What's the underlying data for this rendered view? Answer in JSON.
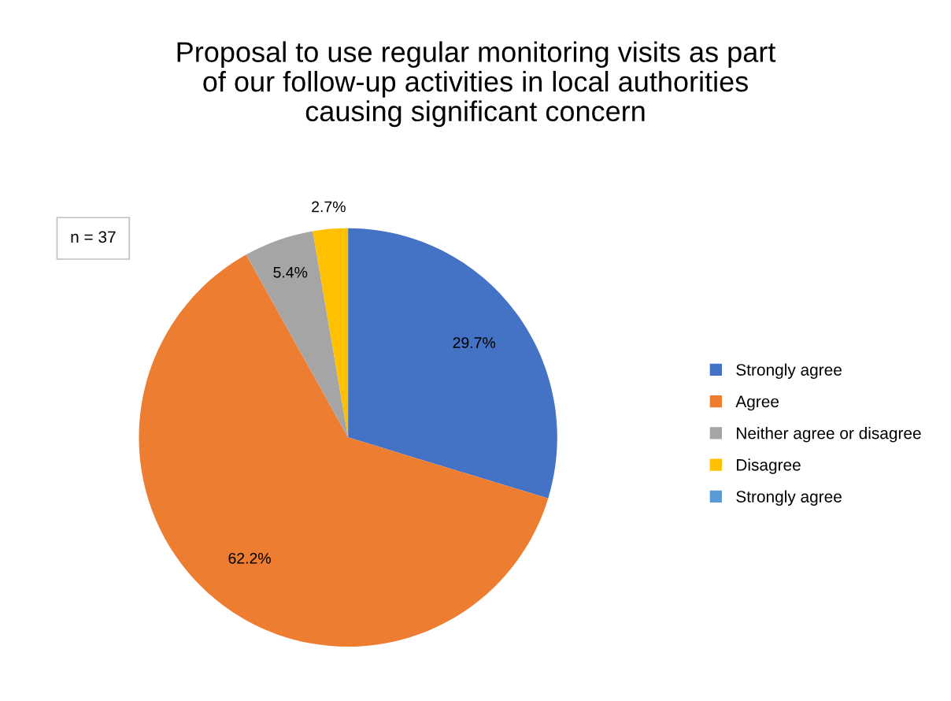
{
  "chart_data": {
    "type": "pie",
    "title": "Proposal to use regular monitoring visits as part\nof our follow-up activities in local authorities\ncausing significant concern",
    "categories": [
      "Strongly agree",
      "Agree",
      "Neither agree or disagree",
      "Disagree",
      "Strongly agree"
    ],
    "values": [
      29.7,
      62.2,
      5.4,
      2.7,
      0
    ],
    "colors": [
      "#4472c4",
      "#ed7d31",
      "#a5a5a5",
      "#ffc000",
      "#5b9bd5"
    ],
    "value_labels": [
      "29.7%",
      "62.2%",
      "5.4%",
      "2.7%",
      null
    ],
    "annotations": [
      "n = 37"
    ],
    "legend": "right"
  }
}
